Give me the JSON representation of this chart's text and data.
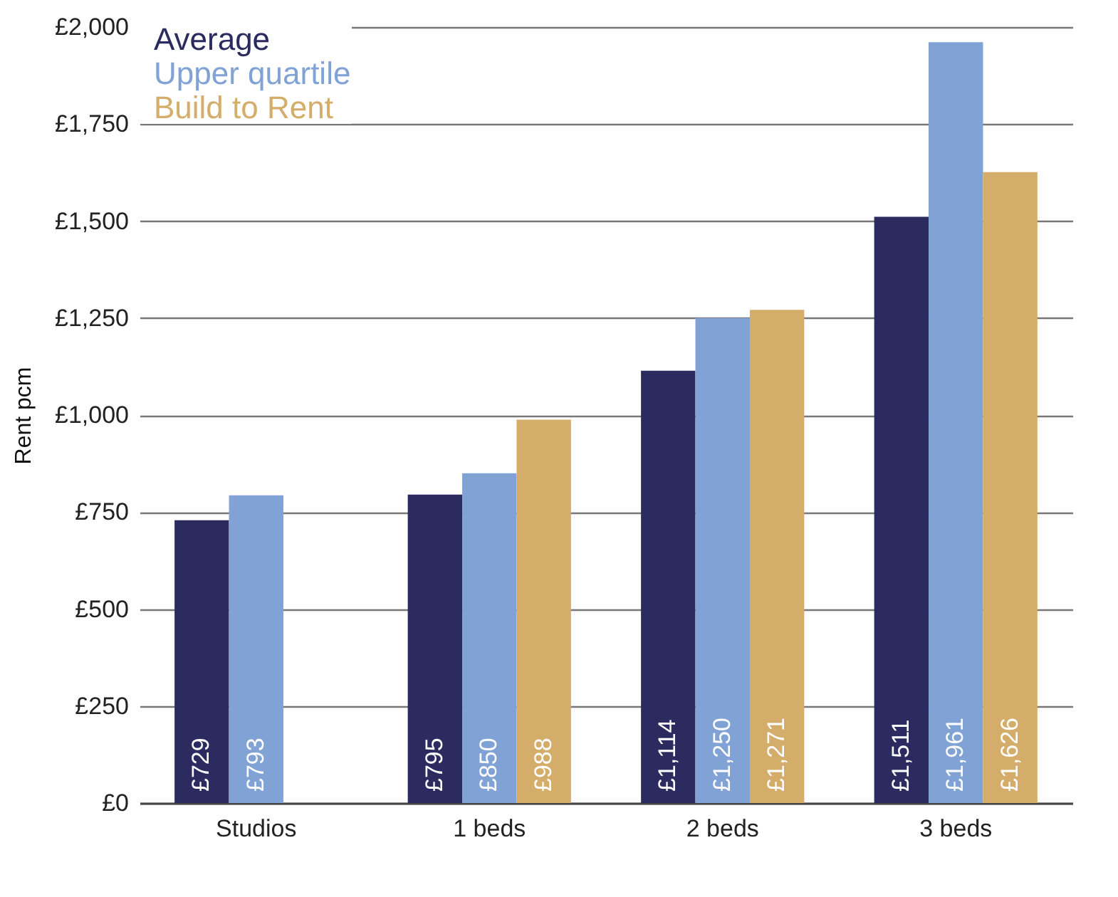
{
  "chart_data": {
    "type": "bar",
    "ylabel": "Rent pcm",
    "categories": [
      "Studios",
      "1 beds",
      "2 beds",
      "3 beds"
    ],
    "series": [
      {
        "name": "Average",
        "color": "#2b2b5f",
        "values": [
          729,
          795,
          1114,
          1511
        ],
        "value_labels": [
          "£729",
          "£795",
          "£1,114",
          "£1,511"
        ]
      },
      {
        "name": "Upper quartile",
        "color": "#80a2d4",
        "values": [
          793,
          850,
          1250,
          1961
        ],
        "value_labels": [
          "£793",
          "£850",
          "£1,250",
          "£1,961"
        ]
      },
      {
        "name": "Build to Rent",
        "color": "#d5ad6b",
        "values": [
          null,
          988,
          1271,
          1626
        ],
        "value_labels": [
          null,
          "£988",
          "£1,271",
          "£1,626"
        ]
      }
    ],
    "ylim": [
      0,
      2000
    ],
    "yticks": [
      {
        "value": 0,
        "label": "£0"
      },
      {
        "value": 250,
        "label": "£250"
      },
      {
        "value": 500,
        "label": "£500"
      },
      {
        "value": 750,
        "label": "£750"
      },
      {
        "value": 1000,
        "label": "£1,000"
      },
      {
        "value": 1250,
        "label": "£1,250"
      },
      {
        "value": 1500,
        "label": "£1,500"
      },
      {
        "value": 1750,
        "label": "£1,750"
      },
      {
        "value": 2000,
        "label": "£2,000"
      }
    ],
    "grid": "y",
    "legend": "top left"
  }
}
